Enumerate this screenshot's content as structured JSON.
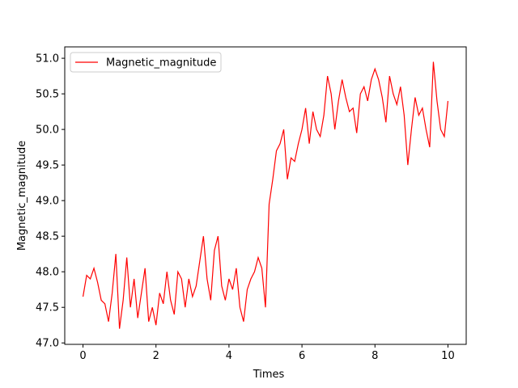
{
  "chart_data": {
    "type": "line",
    "xlabel": "Times",
    "ylabel": "Magnetic_magnitude",
    "x": [
      0,
      0.1,
      0.2,
      0.3,
      0.4,
      0.5,
      0.6,
      0.7,
      0.8,
      0.9,
      1,
      1.1,
      1.2,
      1.3,
      1.4,
      1.5,
      1.6,
      1.7,
      1.8,
      1.9,
      2,
      2.1,
      2.2,
      2.3,
      2.4,
      2.5,
      2.6,
      2.7,
      2.8,
      2.9,
      3,
      3.1,
      3.2,
      3.3,
      3.4,
      3.5,
      3.6,
      3.7,
      3.8,
      3.9,
      4,
      4.1,
      4.2,
      4.3,
      4.4,
      4.5,
      4.6,
      4.7,
      4.8,
      4.9,
      5,
      5.1,
      5.2,
      5.3,
      5.4,
      5.5,
      5.6,
      5.7,
      5.8,
      5.9,
      6,
      6.1,
      6.2,
      6.3,
      6.4,
      6.5,
      6.6,
      6.7,
      6.8,
      6.9,
      7,
      7.1,
      7.2,
      7.3,
      7.4,
      7.5,
      7.6,
      7.7,
      7.8,
      7.9,
      8,
      8.1,
      8.2,
      8.3,
      8.4,
      8.5,
      8.6,
      8.7,
      8.8,
      8.9,
      9,
      9.1,
      9.2,
      9.3,
      9.4,
      9.5,
      9.6,
      9.7,
      9.8,
      9.9,
      10
    ],
    "series": [
      {
        "name": "Magnetic_magnitude",
        "color": "#ff0000",
        "values": [
          47.65,
          47.95,
          47.9,
          48.05,
          47.85,
          47.6,
          47.55,
          47.3,
          47.7,
          48.25,
          47.2,
          47.6,
          48.2,
          47.5,
          47.9,
          47.35,
          47.7,
          48.05,
          47.3,
          47.5,
          47.25,
          47.7,
          47.55,
          48.0,
          47.6,
          47.4,
          48.0,
          47.9,
          47.5,
          47.9,
          47.65,
          47.8,
          48.15,
          48.5,
          47.9,
          47.6,
          48.3,
          48.5,
          47.8,
          47.6,
          47.9,
          47.75,
          48.05,
          47.5,
          47.3,
          47.75,
          47.9,
          48.0,
          48.2,
          48.05,
          47.5,
          48.95,
          49.3,
          49.7,
          49.8,
          50.0,
          49.3,
          49.6,
          49.55,
          49.8,
          50.0,
          50.3,
          49.8,
          50.25,
          50.0,
          49.9,
          50.2,
          50.75,
          50.5,
          50.0,
          50.4,
          50.7,
          50.45,
          50.25,
          50.3,
          49.95,
          50.5,
          50.6,
          50.4,
          50.7,
          50.85,
          50.7,
          50.45,
          50.1,
          50.75,
          50.5,
          50.35,
          50.6,
          50.2,
          49.5,
          50.0,
          50.45,
          50.2,
          50.3,
          50.0,
          49.75,
          50.95,
          50.4,
          50.0,
          49.9,
          50.4
        ]
      }
    ],
    "xlim": [
      -0.5,
      10.5
    ],
    "ylim": [
      46.98,
      51.16
    ],
    "xticks": [
      0,
      2,
      4,
      6,
      8,
      10
    ],
    "yticks": [
      {
        "value": 47,
        "label": "47.0"
      },
      47.5,
      {
        "value": 48,
        "label": "48.0"
      },
      48.5,
      {
        "value": 49,
        "label": "49.0"
      },
      49.5,
      {
        "value": 50,
        "label": "50.0"
      },
      50.5,
      {
        "value": 51,
        "label": "51.0"
      }
    ],
    "grid": false,
    "legend": "upper left"
  }
}
